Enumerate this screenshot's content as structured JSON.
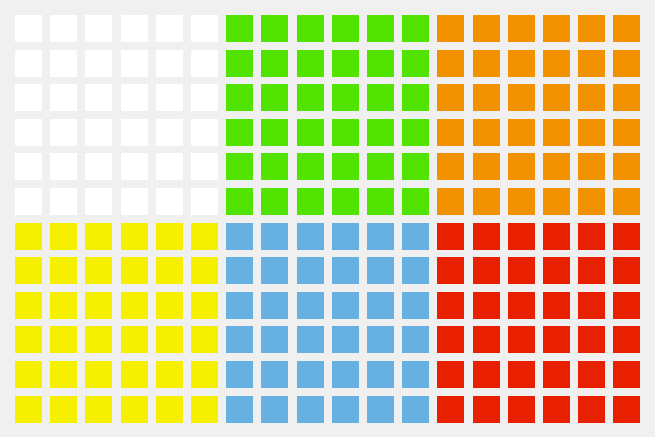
{
  "board": {
    "columns": 18,
    "rows": 12,
    "block_size": 6,
    "blocks": [
      [
        "white",
        "green",
        "orange"
      ],
      [
        "yellow",
        "blue",
        "red"
      ]
    ],
    "colors": {
      "background": "#f0f0f0",
      "white": "#ffffff",
      "green": "#52e300",
      "orange": "#f39200",
      "yellow": "#f5ef00",
      "blue": "#66b1e1",
      "red": "#e82000"
    }
  }
}
